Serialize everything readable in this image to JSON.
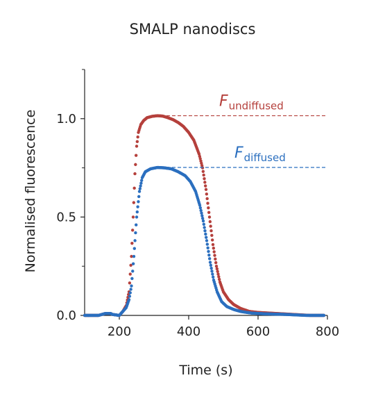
{
  "chart_data": {
    "type": "scatter",
    "title": "SMALP nanodiscs",
    "xlabel": "Time (s)",
    "ylabel": "Normalised fluorescence",
    "xlim": [
      100,
      800
    ],
    "ylim": [
      0,
      1.25
    ],
    "x_ticks": [
      "200",
      "400",
      "600",
      "800"
    ],
    "y_ticks": [
      "0.0",
      "0.5",
      "1.0"
    ],
    "grid": false,
    "series": [
      {
        "color": "#b5403c",
        "points": [
          [
            100,
            0.0
          ],
          [
            120,
            0.0
          ],
          [
            140,
            0.0
          ],
          [
            160,
            0.01
          ],
          [
            175,
            0.01
          ],
          [
            180,
            0.005
          ],
          [
            200,
            0.0
          ],
          [
            210,
            0.02
          ],
          [
            220,
            0.05
          ],
          [
            228,
            0.12
          ],
          [
            235,
            0.3
          ],
          [
            240,
            0.5
          ],
          [
            245,
            0.72
          ],
          [
            250,
            0.86
          ],
          [
            255,
            0.93
          ],
          [
            262,
            0.97
          ],
          [
            270,
            0.99
          ],
          [
            280,
            1.005
          ],
          [
            295,
            1.012
          ],
          [
            310,
            1.015
          ],
          [
            325,
            1.013
          ],
          [
            340,
            1.005
          ],
          [
            355,
            0.995
          ],
          [
            370,
            0.98
          ],
          [
            385,
            0.96
          ],
          [
            400,
            0.93
          ],
          [
            415,
            0.89
          ],
          [
            430,
            0.82
          ],
          [
            440,
            0.75
          ],
          [
            450,
            0.64
          ],
          [
            460,
            0.5
          ],
          [
            470,
            0.36
          ],
          [
            480,
            0.25
          ],
          [
            490,
            0.17
          ],
          [
            500,
            0.12
          ],
          [
            515,
            0.08
          ],
          [
            530,
            0.055
          ],
          [
            550,
            0.035
          ],
          [
            575,
            0.02
          ],
          [
            600,
            0.015
          ],
          [
            650,
            0.01
          ],
          [
            700,
            0.005
          ],
          [
            750,
            0.0
          ],
          [
            790,
            0.0
          ]
        ]
      },
      {
        "color": "#2b6fbf",
        "points": [
          [
            100,
            0.0
          ],
          [
            120,
            0.0
          ],
          [
            140,
            0.0
          ],
          [
            160,
            0.01
          ],
          [
            175,
            0.01
          ],
          [
            180,
            0.005
          ],
          [
            200,
            0.0
          ],
          [
            210,
            0.02
          ],
          [
            220,
            0.04
          ],
          [
            228,
            0.08
          ],
          [
            235,
            0.15
          ],
          [
            242,
            0.3
          ],
          [
            250,
            0.5
          ],
          [
            258,
            0.63
          ],
          [
            266,
            0.7
          ],
          [
            275,
            0.73
          ],
          [
            290,
            0.745
          ],
          [
            310,
            0.752
          ],
          [
            330,
            0.75
          ],
          [
            350,
            0.745
          ],
          [
            370,
            0.73
          ],
          [
            390,
            0.71
          ],
          [
            405,
            0.68
          ],
          [
            420,
            0.63
          ],
          [
            432,
            0.56
          ],
          [
            442,
            0.48
          ],
          [
            452,
            0.38
          ],
          [
            462,
            0.27
          ],
          [
            472,
            0.18
          ],
          [
            482,
            0.12
          ],
          [
            495,
            0.07
          ],
          [
            510,
            0.045
          ],
          [
            530,
            0.03
          ],
          [
            550,
            0.02
          ],
          [
            580,
            0.012
          ],
          [
            620,
            0.008
          ],
          [
            680,
            0.005
          ],
          [
            740,
            0.0
          ],
          [
            790,
            0.0
          ]
        ]
      }
    ],
    "annotations": [
      {
        "main": "F",
        "sub": "undiffused",
        "color": "#b5403c",
        "y": 1.015,
        "x_from": 320,
        "x_to": 790
      },
      {
        "main": "F",
        "sub": "diffused",
        "color": "#2b6fbf",
        "y": 0.752,
        "x_from": 320,
        "x_to": 790
      }
    ]
  }
}
